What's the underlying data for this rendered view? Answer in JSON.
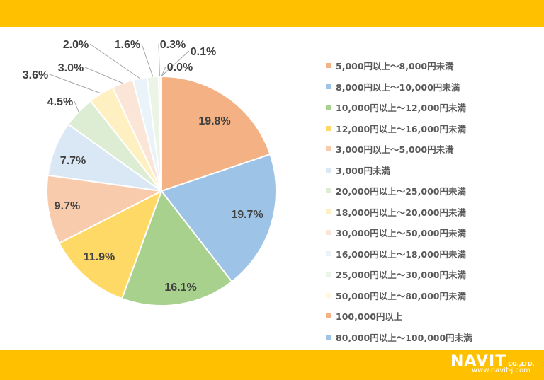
{
  "chart_data": {
    "type": "pie",
    "title": "",
    "start": "12 o'clock, clockwise",
    "legend_position": "right",
    "slices": [
      {
        "label": "5,000円以上～8,000円未満",
        "value": 19.8,
        "display": "19.8%",
        "color": "#F4B183"
      },
      {
        "label": "8,000円以上～10,000円未満",
        "value": 19.7,
        "display": "19.7%",
        "color": "#9DC3E6"
      },
      {
        "label": "10,000円以上～12,000円未満",
        "value": 16.1,
        "display": "16.1%",
        "color": "#A9D18E"
      },
      {
        "label": "12,000円以上～16,000円未満",
        "value": 11.9,
        "display": "11.9%",
        "color": "#FFD966"
      },
      {
        "label": "3,000円以上～5,000円未満",
        "value": 9.7,
        "display": "9.7%",
        "color": "#F8CBAD"
      },
      {
        "label": "3,000円未満",
        "value": 7.7,
        "display": "7.7%",
        "color": "#DAE8F5"
      },
      {
        "label": "20,000円以上～25,000円未満",
        "value": 4.5,
        "display": "4.5%",
        "color": "#DDEDD3"
      },
      {
        "label": "18,000円以上～20,000円未満",
        "value": 3.6,
        "display": "3.6%",
        "color": "#FFF0C2"
      },
      {
        "label": "30,000円以上～50,000円未満",
        "value": 3.0,
        "display": "3.0%",
        "color": "#FBE5D6"
      },
      {
        "label": "16,000円以上～18,000円未満",
        "value": 2.0,
        "display": "2.0%",
        "color": "#EAF2FA"
      },
      {
        "label": "25,000円以上～30,000円未満",
        "value": 1.6,
        "display": "1.6%",
        "color": "#ECF4E7"
      },
      {
        "label": "50,000円以上～80,000円未満",
        "value": 0.3,
        "display": "0.3%",
        "color": "#FFF7E0"
      },
      {
        "label": "100,000円以上",
        "value": 0.1,
        "display": "0.1%",
        "color": "#F4B183"
      },
      {
        "label": "80,000円以上～100,000円未満",
        "value": 0.0,
        "display": "0.0%",
        "color": "#9DC3E6"
      }
    ]
  },
  "branding": {
    "logo_text": "NAVIT",
    "company_suffix": "CO.,LTD.",
    "url": "www.navit-j.com"
  },
  "colors": {
    "band": "#FFC000",
    "label": "#404040",
    "legend_text": "#595959"
  }
}
